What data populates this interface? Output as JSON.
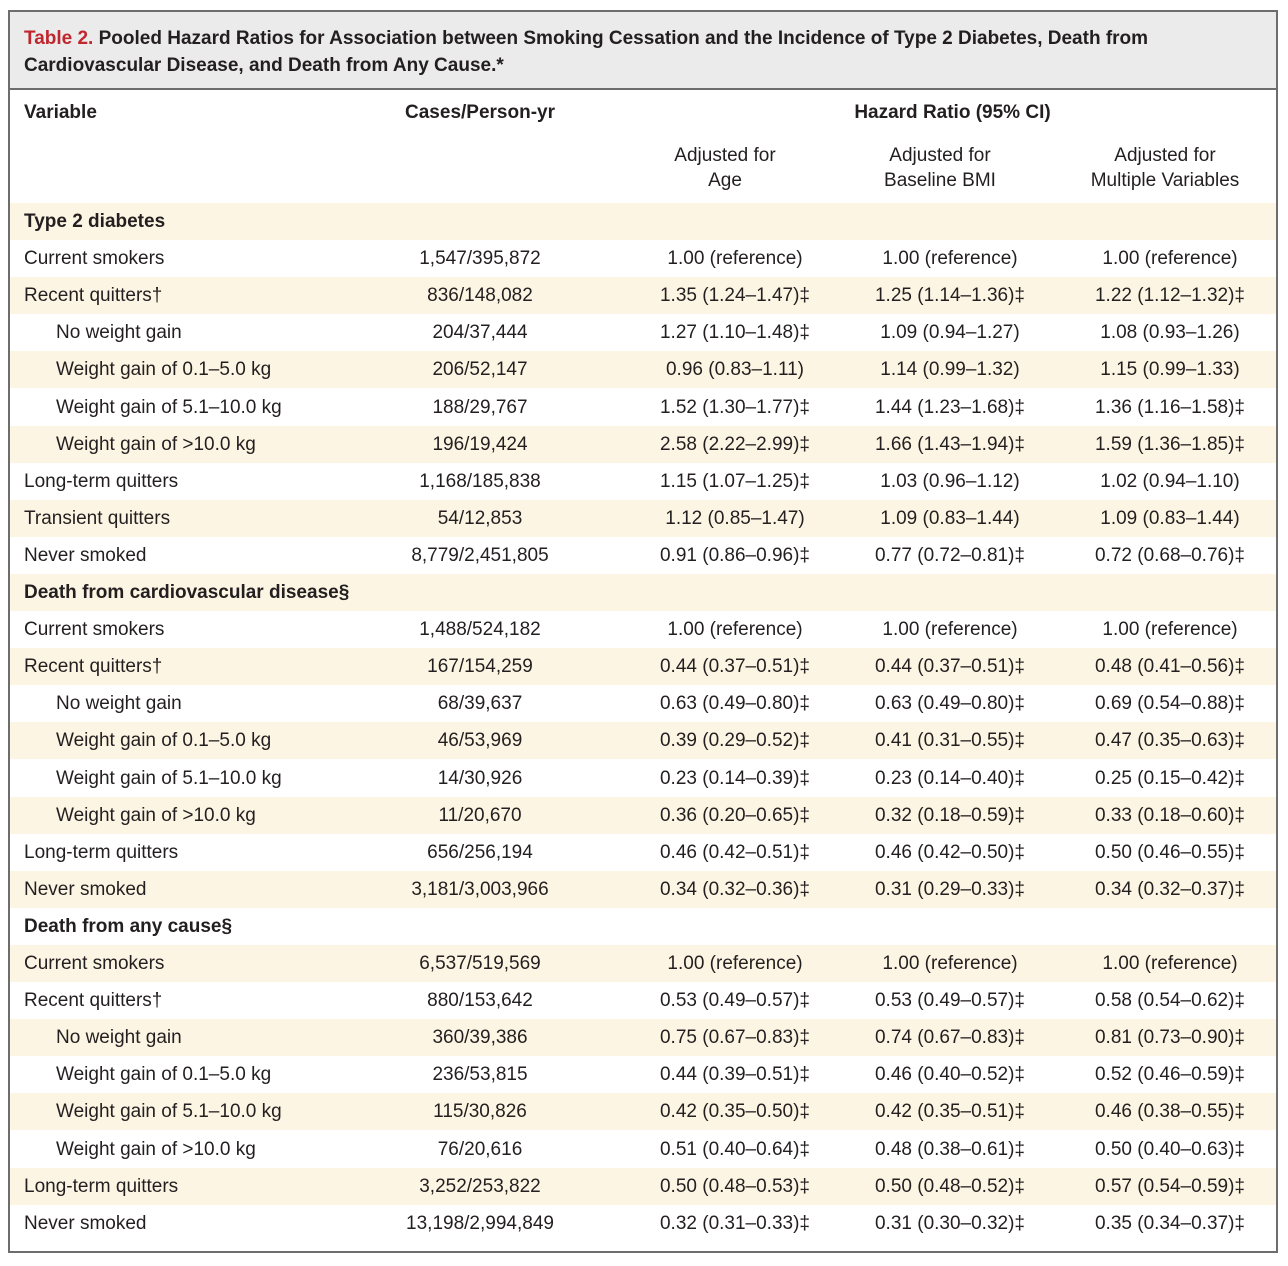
{
  "caption": {
    "label": "Table 2.",
    "text": " Pooled Hazard Ratios for Association between Smoking Cessation and the Incidence of Type 2 Diabetes, Death from Cardiovascular Disease, and Death from Any Cause.*"
  },
  "headers": {
    "variable": "Variable",
    "cases": "Cases/Person-yr",
    "hazard_ratio": "Hazard Ratio (95% CI)",
    "adj_age_line1": "Adjusted for",
    "adj_age_line2": "Age",
    "adj_bmi_line1": "Adjusted for",
    "adj_bmi_line2": "Baseline BMI",
    "adj_mv_line1": "Adjusted for",
    "adj_mv_line2": "Multiple Variables"
  },
  "rows": [
    {
      "kind": "section",
      "label": "Type 2 diabetes"
    },
    {
      "kind": "data",
      "label": "Current smokers",
      "cases": "1,547/395,872",
      "age": "1.00 (reference)",
      "bmi": "1.00 (reference)",
      "mv": "1.00 (reference)"
    },
    {
      "kind": "data",
      "label": "Recent quitters†",
      "cases": "836/148,082",
      "age": "1.35 (1.24–1.47)‡",
      "bmi": "1.25 (1.14–1.36)‡",
      "mv": "1.22 (1.12–1.32)‡"
    },
    {
      "kind": "sub",
      "label": "No weight gain",
      "cases": "204/37,444",
      "age": "1.27 (1.10–1.48)‡",
      "bmi": "1.09 (0.94–1.27)",
      "mv": "1.08 (0.93–1.26)"
    },
    {
      "kind": "sub",
      "label": "Weight gain of 0.1–5.0 kg",
      "cases": "206/52,147",
      "age": "0.96 (0.83–1.11)",
      "bmi": "1.14 (0.99–1.32)",
      "mv": "1.15 (0.99–1.33)"
    },
    {
      "kind": "sub",
      "label": "Weight gain of 5.1–10.0 kg",
      "cases": "188/29,767",
      "age": "1.52 (1.30–1.77)‡",
      "bmi": "1.44 (1.23–1.68)‡",
      "mv": "1.36 (1.16–1.58)‡"
    },
    {
      "kind": "sub",
      "label": "Weight gain of >10.0 kg",
      "cases": "196/19,424",
      "age": "2.58 (2.22–2.99)‡",
      "bmi": "1.66 (1.43–1.94)‡",
      "mv": "1.59 (1.36–1.85)‡"
    },
    {
      "kind": "data",
      "label": "Long-term quitters",
      "cases": "1,168/185,838",
      "age": "1.15 (1.07–1.25)‡",
      "bmi": "1.03 (0.96–1.12)",
      "mv": "1.02 (0.94–1.10)"
    },
    {
      "kind": "data",
      "label": "Transient quitters",
      "cases": "54/12,853",
      "age": "1.12 (0.85–1.47)",
      "bmi": "1.09 (0.83–1.44)",
      "mv": "1.09 (0.83–1.44)"
    },
    {
      "kind": "data",
      "label": "Never smoked",
      "cases": "8,779/2,451,805",
      "age": "0.91 (0.86–0.96)‡",
      "bmi": "0.77 (0.72–0.81)‡",
      "mv": "0.72 (0.68–0.76)‡"
    },
    {
      "kind": "section",
      "label": "Death from cardiovascular disease§"
    },
    {
      "kind": "data",
      "label": "Current smokers",
      "cases": "1,488/524,182",
      "age": "1.00 (reference)",
      "bmi": "1.00 (reference)",
      "mv": "1.00 (reference)"
    },
    {
      "kind": "data",
      "label": "Recent quitters†",
      "cases": "167/154,259",
      "age": "0.44 (0.37–0.51)‡",
      "bmi": "0.44 (0.37–0.51)‡",
      "mv": "0.48 (0.41–0.56)‡"
    },
    {
      "kind": "sub",
      "label": "No weight gain",
      "cases": "68/39,637",
      "age": "0.63 (0.49–0.80)‡",
      "bmi": "0.63 (0.49–0.80)‡",
      "mv": "0.69 (0.54–0.88)‡"
    },
    {
      "kind": "sub",
      "label": "Weight gain of 0.1–5.0 kg",
      "cases": "46/53,969",
      "age": "0.39 (0.29–0.52)‡",
      "bmi": "0.41 (0.31–0.55)‡",
      "mv": "0.47 (0.35–0.63)‡"
    },
    {
      "kind": "sub",
      "label": "Weight gain of 5.1–10.0 kg",
      "cases": "14/30,926",
      "age": "0.23 (0.14–0.39)‡",
      "bmi": "0.23 (0.14–0.40)‡",
      "mv": "0.25 (0.15–0.42)‡"
    },
    {
      "kind": "sub",
      "label": "Weight gain of >10.0 kg",
      "cases": "11/20,670",
      "age": "0.36 (0.20–0.65)‡",
      "bmi": "0.32 (0.18–0.59)‡",
      "mv": "0.33 (0.18–0.60)‡"
    },
    {
      "kind": "data",
      "label": "Long-term quitters",
      "cases": "656/256,194",
      "age": "0.46 (0.42–0.51)‡",
      "bmi": "0.46 (0.42–0.50)‡",
      "mv": "0.50 (0.46–0.55)‡"
    },
    {
      "kind": "data",
      "label": "Never smoked",
      "cases": "3,181/3,003,966",
      "age": "0.34 (0.32–0.36)‡",
      "bmi": "0.31 (0.29–0.33)‡",
      "mv": "0.34 (0.32–0.37)‡"
    },
    {
      "kind": "section",
      "label": "Death from any cause§"
    },
    {
      "kind": "data",
      "label": "Current smokers",
      "cases": "6,537/519,569",
      "age": "1.00 (reference)",
      "bmi": "1.00 (reference)",
      "mv": "1.00 (reference)"
    },
    {
      "kind": "data",
      "label": "Recent quitters†",
      "cases": "880/153,642",
      "age": "0.53 (0.49–0.57)‡",
      "bmi": "0.53 (0.49–0.57)‡",
      "mv": "0.58 (0.54–0.62)‡"
    },
    {
      "kind": "sub",
      "label": "No weight gain",
      "cases": "360/39,386",
      "age": "0.75 (0.67–0.83)‡",
      "bmi": "0.74 (0.67–0.83)‡",
      "mv": "0.81 (0.73–0.90)‡"
    },
    {
      "kind": "sub",
      "label": "Weight gain of 0.1–5.0 kg",
      "cases": "236/53,815",
      "age": "0.44 (0.39–0.51)‡",
      "bmi": "0.46 (0.40–0.52)‡",
      "mv": "0.52 (0.46–0.59)‡"
    },
    {
      "kind": "sub",
      "label": "Weight gain of 5.1–10.0 kg",
      "cases": "115/30,826",
      "age": "0.42 (0.35–0.50)‡",
      "bmi": "0.42 (0.35–0.51)‡",
      "mv": "0.46 (0.38–0.55)‡"
    },
    {
      "kind": "sub",
      "label": "Weight gain of >10.0 kg",
      "cases": "76/20,616",
      "age": "0.51 (0.40–0.64)‡",
      "bmi": "0.48 (0.38–0.61)‡",
      "mv": "0.50 (0.40–0.63)‡"
    },
    {
      "kind": "data",
      "label": "Long-term quitters",
      "cases": "3,252/253,822",
      "age": "0.50 (0.48–0.53)‡",
      "bmi": "0.50 (0.48–0.52)‡",
      "mv": "0.57 (0.54–0.59)‡"
    },
    {
      "kind": "data",
      "label": "Never smoked",
      "cases": "13,198/2,994,849",
      "age": "0.32 (0.31–0.33)‡",
      "bmi": "0.31 (0.30–0.32)‡",
      "mv": "0.35 (0.34–0.37)‡"
    }
  ]
}
